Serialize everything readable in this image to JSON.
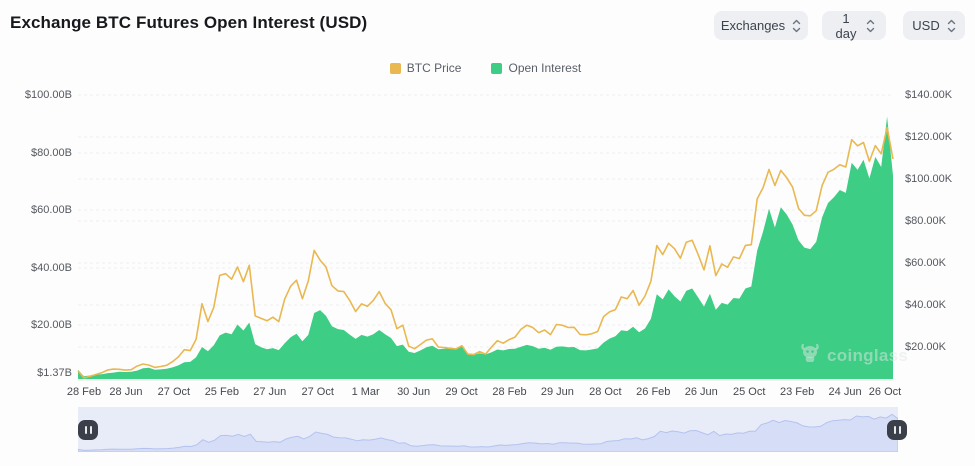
{
  "header": {
    "title": "Exchange BTC Futures Open Interest (USD)",
    "controls": [
      {
        "label": "Exchanges",
        "icon": "updown-chevron-icon"
      },
      {
        "label": "1 day",
        "icon": "updown-chevron-icon"
      },
      {
        "label": "USD",
        "icon": "updown-chevron-icon"
      }
    ]
  },
  "legend": [
    {
      "label": "BTC Price",
      "color": "#e9b851"
    },
    {
      "label": "Open Interest",
      "color": "#3dcd84"
    }
  ],
  "watermark": {
    "text": "coinglass",
    "icon": "coinglass-bull-icon"
  },
  "colors": {
    "btc_price_line": "#e9b851",
    "open_interest_fill": "#3dcd84",
    "grid": "#eeeeee",
    "axis_baseline": "#e4e4e4",
    "navigator_band": "#e8ecf9",
    "navigator_area_fill": "#d6def7",
    "navigator_area_line": "#b4c2ee",
    "navigator_handle": "#3a3f4a"
  },
  "chart_data": {
    "type": "mixed",
    "title": "Exchange BTC Futures Open Interest (USD)",
    "x_tick_labels": [
      "28 Feb",
      "28 Jun",
      "27 Oct",
      "25 Feb",
      "27 Jun",
      "27 Oct",
      "1 Mar",
      "30 Jun",
      "29 Oct",
      "28 Feb",
      "29 Jun",
      "28 Oct",
      "26 Feb",
      "26 Jun",
      "25 Oct",
      "23 Feb",
      "24 Jun",
      "26 Oct"
    ],
    "left_axis": {
      "title": "Open Interest (USD billions)",
      "tick_labels": [
        "$100.00B",
        "$80.00B",
        "$60.00B",
        "$40.00B",
        "$20.00B",
        "$1.37B"
      ],
      "tick_values": [
        100,
        80,
        60,
        40,
        20,
        1.37
      ],
      "range": [
        1.37,
        100
      ]
    },
    "right_axis": {
      "title": "BTC Price (USD thousands)",
      "tick_labels": [
        "$140.00K",
        "$120.00K",
        "$100.00K",
        "$80.00K",
        "$60.00K",
        "$40.00K",
        "$20.00K"
      ],
      "tick_values": [
        140,
        120,
        100,
        80,
        60,
        40,
        20
      ],
      "range": [
        5,
        140
      ]
    },
    "grid": "dashed",
    "legend_position": "top-center",
    "series": [
      {
        "name": "Open Interest",
        "type": "area",
        "axis": "left",
        "unit": "USD billions",
        "color": "#3dcd84",
        "values": [
          4.6,
          2.3,
          2.6,
          2.9,
          3.0,
          3.4,
          3.6,
          3.9,
          3.8,
          3.9,
          4.3,
          5.1,
          5.3,
          4.6,
          4.7,
          4.9,
          5.4,
          6.1,
          7.2,
          7.3,
          8.9,
          12.5,
          11.0,
          13.1,
          16.5,
          17.5,
          16.9,
          20.3,
          18.2,
          21.0,
          13.5,
          12.4,
          11.7,
          12.1,
          11.4,
          13.8,
          15.9,
          17.1,
          14.5,
          16.7,
          24.3,
          25.3,
          23.3,
          19.7,
          18.7,
          18.4,
          16.8,
          15.3,
          16.7,
          16.1,
          16.9,
          18.4,
          16.9,
          15.6,
          12.8,
          13.3,
          10.8,
          10.4,
          11.3,
          12.4,
          12.9,
          11.7,
          11.9,
          12.1,
          11.8,
          12.7,
          10.1,
          9.8,
          10.3,
          9.9,
          10.6,
          11.6,
          11.3,
          11.8,
          11.9,
          12.6,
          13.2,
          12.8,
          11.9,
          12.2,
          11.5,
          12.6,
          12.7,
          12.4,
          12.5,
          11.4,
          11.3,
          11.6,
          12.0,
          14.0,
          15.4,
          16.2,
          18.3,
          18.0,
          19.5,
          17.6,
          18.9,
          22.3,
          30.8,
          29.0,
          32.5,
          30.1,
          28.3,
          32.0,
          32.8,
          29.7,
          26.5,
          31.0,
          25.4,
          27.8,
          27.2,
          29.5,
          29.3,
          32.8,
          33.5,
          46.0,
          52.6,
          60.5,
          54.0,
          61.0,
          58.5,
          55.0,
          49.5,
          47.0,
          46.5,
          49.0,
          57.5,
          62.5,
          64.5,
          67.0,
          66.0,
          76.5,
          74.0,
          77.5,
          71.0,
          78.5,
          75.0,
          92.5,
          72.0
        ]
      },
      {
        "name": "BTC Price",
        "type": "line",
        "axis": "right",
        "unit": "USD thousands",
        "color": "#e9b851",
        "values": [
          8.7,
          5.3,
          6.0,
          6.9,
          7.7,
          9.0,
          9.5,
          9.4,
          9.0,
          9.2,
          10.9,
          11.9,
          11.4,
          10.3,
          10.7,
          11.3,
          13.0,
          15.3,
          18.7,
          18.3,
          23.7,
          40.6,
          32.1,
          38.9,
          54.1,
          54.9,
          52.3,
          58.1,
          51.1,
          58.9,
          34.8,
          33.6,
          32.5,
          34.2,
          32.1,
          42.8,
          48.9,
          51.8,
          43.0,
          51.5,
          66.0,
          61.4,
          58.1,
          49.2,
          46.7,
          46.4,
          42.2,
          36.9,
          40.5,
          39.4,
          42.2,
          46.4,
          40.8,
          37.7,
          28.7,
          30.4,
          20.4,
          19.2,
          21.2,
          23.3,
          23.9,
          20.0,
          19.7,
          19.4,
          19.1,
          20.6,
          16.6,
          16.4,
          17.8,
          16.6,
          19.9,
          23.0,
          21.8,
          23.5,
          24.7,
          28.4,
          30.4,
          29.3,
          26.8,
          28.1,
          25.9,
          30.7,
          30.4,
          29.3,
          29.4,
          26.0,
          25.8,
          26.3,
          27.4,
          34.5,
          36.7,
          37.8,
          43.8,
          43.0,
          46.9,
          39.9,
          44.3,
          51.3,
          68.3,
          64.0,
          69.4,
          66.8,
          62.3,
          69.9,
          70.8,
          64.1,
          56.7,
          68.2,
          54.0,
          59.5,
          58.0,
          62.9,
          62.1,
          68.4,
          68.7,
          90.5,
          95.9,
          104.5,
          96.9,
          104.1,
          100.6,
          96.1,
          86.0,
          82.7,
          82.5,
          84.9,
          96.9,
          103.2,
          104.6,
          106.8,
          105.7,
          118.7,
          115.8,
          117.4,
          108.4,
          115.9,
          112.0,
          124.5,
          109.5
        ]
      }
    ],
    "navigator": {
      "shows_series": "BTC Price"
    }
  }
}
